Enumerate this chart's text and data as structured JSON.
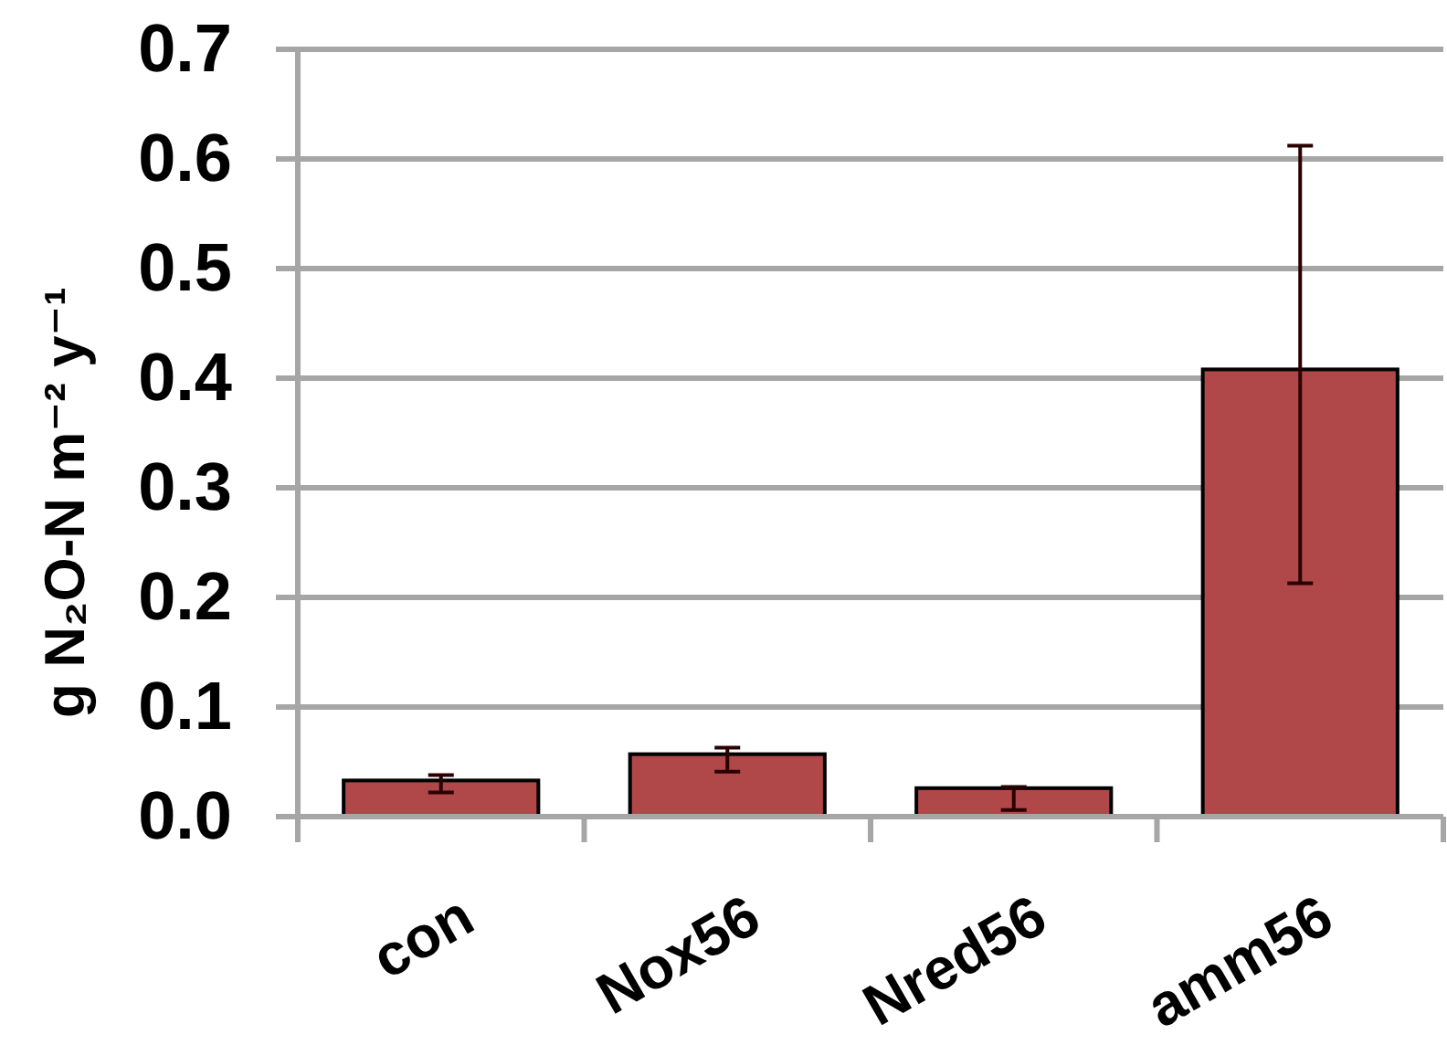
{
  "chart_data": {
    "type": "bar",
    "ylabel": "g N₂O-N m⁻² y⁻¹",
    "categories": [
      "con",
      "Nox56",
      "Nred56",
      "amm56"
    ],
    "values": [
      0.033,
      0.057,
      0.026,
      0.408
    ],
    "errors": [
      [
        0.022,
        0.038
      ],
      [
        0.041,
        0.063
      ],
      [
        0.006,
        0.027
      ],
      [
        0.213,
        0.612
      ]
    ],
    "color": "#b0484a",
    "ylim": [
      0,
      0.7
    ],
    "yticks": [
      {
        "value": 0,
        "label": "0.0"
      },
      0.1,
      0.2,
      0.3,
      0.4,
      0.5,
      0.6,
      0.7
    ],
    "grid": "y"
  }
}
